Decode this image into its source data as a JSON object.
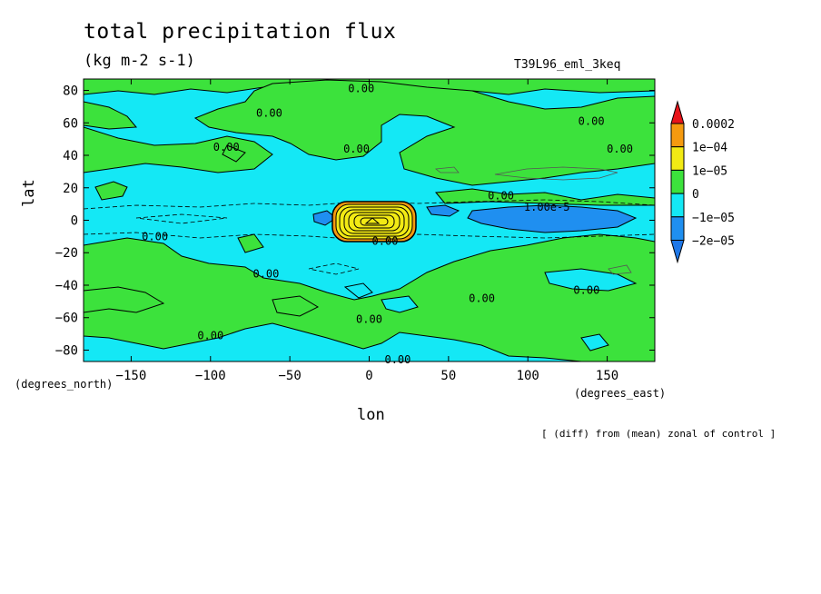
{
  "chart_data": {
    "type": "heatmap",
    "title": "total precipitation flux",
    "units": "(kg m-2 s-1)",
    "run_id": "T39L96_eml_3keq",
    "xlabel": "lon",
    "ylabel": "lat",
    "x_units_label": "(degrees_east)",
    "y_units_label": "(degrees_north)",
    "note": "[ (diff) from (mean) zonal of control ]",
    "xlim": [
      -180,
      180
    ],
    "ylim": [
      -87,
      87
    ],
    "x_ticks": [
      -150,
      -100,
      -50,
      0,
      50,
      100,
      150
    ],
    "y_ticks": [
      80,
      60,
      40,
      20,
      0,
      -20,
      -40,
      -60,
      -80
    ],
    "colorbar": {
      "labels": [
        "0.0002",
        "1e-04",
        "1e-05",
        "0",
        "-1e-05",
        "-2e-05"
      ],
      "colors": [
        "#e8141a",
        "#f59a0f",
        "#f2ea14",
        "#3ce23c",
        "#14e8f5",
        "#1f8ff0",
        "#1f78e8"
      ]
    },
    "contour_labels": [
      {
        "text": "0.00",
        "lon": -5,
        "lat": 81
      },
      {
        "text": "0.00",
        "lon": -63,
        "lat": 66
      },
      {
        "text": "0.00",
        "lon": -90,
        "lat": 45
      },
      {
        "text": "0.00",
        "lon": -8,
        "lat": 44
      },
      {
        "text": "0.00",
        "lon": 140,
        "lat": 61
      },
      {
        "text": "0.00",
        "lon": 158,
        "lat": 44
      },
      {
        "text": "0.00",
        "lon": 83,
        "lat": 15
      },
      {
        "text": "1.00e-5",
        "lon": 112,
        "lat": 8
      },
      {
        "text": "0.00",
        "lon": -135,
        "lat": -10
      },
      {
        "text": "0.00",
        "lon": 10,
        "lat": -13
      },
      {
        "text": "0.00",
        "lon": -65,
        "lat": -33
      },
      {
        "text": "0.00",
        "lon": 71,
        "lat": -48
      },
      {
        "text": "0.00",
        "lon": 137,
        "lat": -43
      },
      {
        "text": "0.00",
        "lon": 0,
        "lat": -61
      },
      {
        "text": "0.00",
        "lon": -100,
        "lat": -71
      },
      {
        "text": "0.00",
        "lon": 18,
        "lat": -86
      }
    ]
  }
}
